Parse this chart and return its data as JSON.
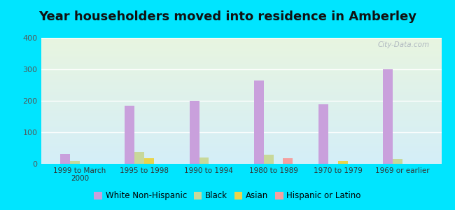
{
  "title": "Year householders moved into residence in Amberley",
  "categories": [
    "1999 to March\n2000",
    "1995 to 1998",
    "1990 to 1994",
    "1980 to 1989",
    "1970 to 1979",
    "1969 or earlier"
  ],
  "series": {
    "White Non-Hispanic": [
      32,
      185,
      200,
      265,
      190,
      300
    ],
    "Black": [
      10,
      38,
      20,
      28,
      0,
      15
    ],
    "Asian": [
      0,
      17,
      0,
      0,
      8,
      0
    ],
    "Hispanic or Latino": [
      0,
      0,
      0,
      18,
      0,
      0
    ]
  },
  "colors": {
    "White Non-Hispanic": "#c9a0dc",
    "Black": "#c8d89a",
    "Asian": "#e8d44d",
    "Hispanic or Latino": "#f4a0a0"
  },
  "ylim": [
    0,
    400
  ],
  "yticks": [
    0,
    100,
    200,
    300,
    400
  ],
  "bg_outer": "#00e5ff",
  "grid_color": "#ffffff",
  "bar_width": 0.15,
  "legend_fontsize": 8.5,
  "title_fontsize": 13
}
